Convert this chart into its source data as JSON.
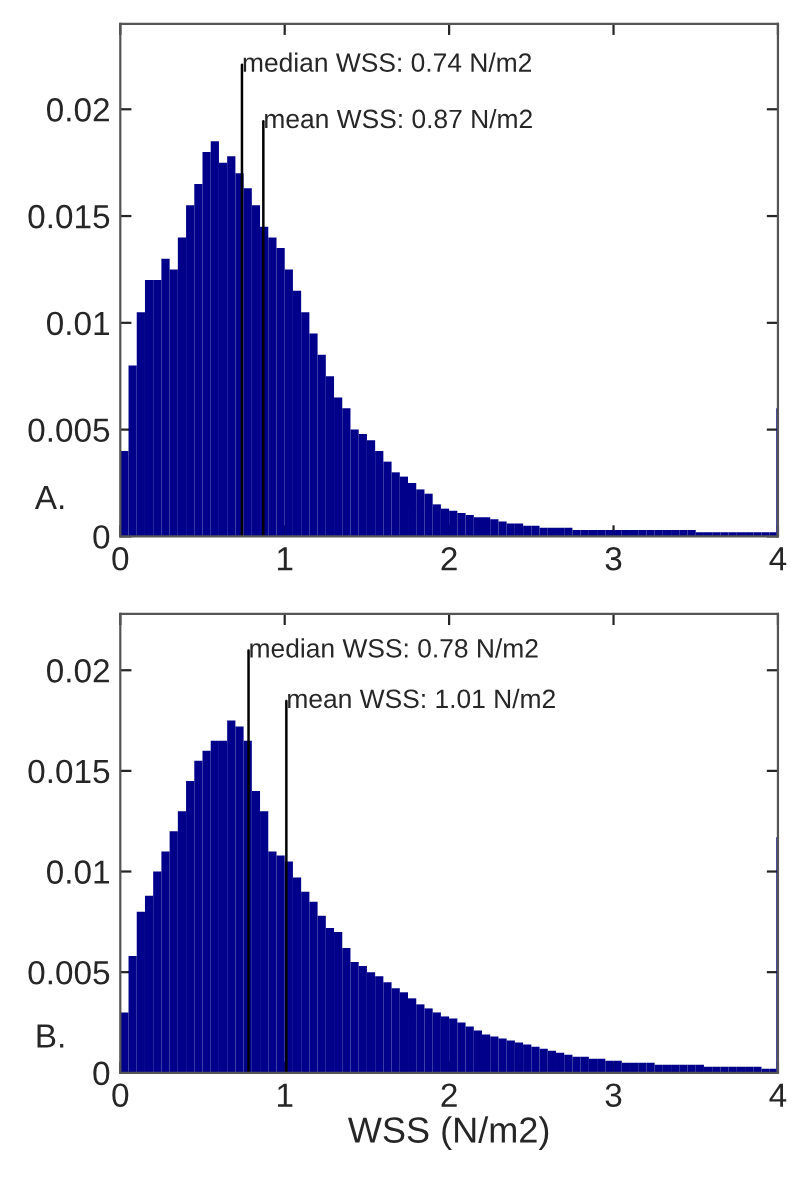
{
  "chart_data": [
    {
      "type": "histogram",
      "bins": [
        0,
        0.05,
        0.1,
        0.15,
        0.2,
        0.25,
        0.3,
        0.35,
        0.4,
        0.45,
        0.5,
        0.55,
        0.6,
        0.65,
        0.7,
        0.75,
        0.8,
        0.85,
        0.9,
        0.95,
        1.0,
        1.05,
        1.1,
        1.15,
        1.2,
        1.25,
        1.3,
        1.35,
        1.4,
        1.45,
        1.5,
        1.55,
        1.6,
        1.65,
        1.7,
        1.75,
        1.8,
        1.85,
        1.9,
        1.95,
        2.0,
        2.05,
        2.1,
        2.15,
        2.2,
        2.25,
        2.3,
        2.35,
        2.4,
        2.45,
        2.5,
        2.55,
        2.6,
        2.65,
        2.7,
        2.75,
        2.8,
        2.85,
        2.9,
        2.95,
        3.0,
        3.05,
        3.1,
        3.15,
        3.2,
        3.25,
        3.3,
        3.35,
        3.4,
        3.45,
        3.5,
        3.55,
        3.6,
        3.65,
        3.7,
        3.75,
        3.8,
        3.85,
        3.9,
        3.95,
        3.99,
        4.0
      ],
      "values": [
        0.004,
        0.008,
        0.0105,
        0.012,
        0.012,
        0.013,
        0.0125,
        0.014,
        0.0155,
        0.0165,
        0.018,
        0.0185,
        0.0175,
        0.0178,
        0.017,
        0.0163,
        0.0155,
        0.0145,
        0.014,
        0.0135,
        0.0125,
        0.0115,
        0.0105,
        0.0095,
        0.0085,
        0.0075,
        0.0065,
        0.006,
        0.005,
        0.0048,
        0.0045,
        0.004,
        0.0035,
        0.003,
        0.0028,
        0.0025,
        0.0022,
        0.002,
        0.0015,
        0.0013,
        0.0012,
        0.0011,
        0.001,
        0.0009,
        0.0009,
        0.0008,
        0.0007,
        0.0006,
        0.0006,
        0.0005,
        0.0005,
        0.0004,
        0.0004,
        0.0004,
        0.0004,
        0.0003,
        0.0003,
        0.0003,
        0.0003,
        0.0003,
        0.0003,
        0.0003,
        0.0003,
        0.0003,
        0.0003,
        0.0003,
        0.0003,
        0.0003,
        0.0003,
        0.0003,
        0.0002,
        0.0002,
        0.0002,
        0.0002,
        0.0002,
        0.0002,
        0.0002,
        0.0002,
        0.0002,
        0.0002,
        0.006
      ],
      "color": "#00008b",
      "xlim": [
        0,
        4
      ],
      "xticks": [
        0,
        1,
        2,
        3,
        4
      ],
      "ylim": [
        0,
        0.024
      ],
      "yticks": [
        0,
        0.005,
        0.01,
        0.015,
        0.02
      ],
      "ref_lines": [
        {
          "axis": "x",
          "value": 0.74,
          "label": "median WSS: 0.74 N/m2"
        },
        {
          "axis": "x",
          "value": 0.87,
          "label": "mean WSS: 0.87 N/m2"
        }
      ],
      "annotations": [
        "A."
      ],
      "grid": false,
      "legend": false
    },
    {
      "type": "histogram",
      "bins": [
        0,
        0.05,
        0.1,
        0.15,
        0.2,
        0.25,
        0.3,
        0.35,
        0.4,
        0.45,
        0.5,
        0.55,
        0.6,
        0.65,
        0.7,
        0.75,
        0.8,
        0.85,
        0.9,
        0.95,
        1.0,
        1.05,
        1.1,
        1.15,
        1.2,
        1.25,
        1.3,
        1.35,
        1.4,
        1.45,
        1.5,
        1.55,
        1.6,
        1.65,
        1.7,
        1.75,
        1.8,
        1.85,
        1.9,
        1.95,
        2.0,
        2.05,
        2.1,
        2.15,
        2.2,
        2.25,
        2.3,
        2.35,
        2.4,
        2.45,
        2.5,
        2.55,
        2.6,
        2.65,
        2.7,
        2.75,
        2.8,
        2.85,
        2.9,
        2.95,
        3.0,
        3.05,
        3.1,
        3.15,
        3.2,
        3.25,
        3.3,
        3.35,
        3.4,
        3.45,
        3.5,
        3.55,
        3.6,
        3.65,
        3.7,
        3.75,
        3.8,
        3.85,
        3.9,
        3.95,
        3.99,
        4.0
      ],
      "values": [
        0.003,
        0.0058,
        0.008,
        0.0088,
        0.01,
        0.011,
        0.012,
        0.013,
        0.0145,
        0.0155,
        0.016,
        0.0165,
        0.0165,
        0.0175,
        0.0172,
        0.0165,
        0.014,
        0.013,
        0.011,
        0.0108,
        0.0105,
        0.0097,
        0.009,
        0.0085,
        0.0078,
        0.0072,
        0.007,
        0.0062,
        0.0055,
        0.0053,
        0.005,
        0.0048,
        0.0045,
        0.0042,
        0.004,
        0.0037,
        0.0034,
        0.0032,
        0.003,
        0.0028,
        0.0027,
        0.0025,
        0.0023,
        0.0021,
        0.0019,
        0.0018,
        0.0017,
        0.0016,
        0.0015,
        0.0014,
        0.0013,
        0.0012,
        0.0011,
        0.001,
        0.0009,
        0.0008,
        0.0008,
        0.0007,
        0.0007,
        0.0006,
        0.0006,
        0.0005,
        0.0005,
        0.0005,
        0.0005,
        0.0004,
        0.0004,
        0.0004,
        0.0004,
        0.0004,
        0.0004,
        0.0003,
        0.0003,
        0.0003,
        0.0003,
        0.0003,
        0.0003,
        0.0003,
        0.0002,
        0.0002,
        0.0117
      ],
      "color": "#00008b",
      "xlim": [
        0,
        4
      ],
      "xticks": [
        0,
        1,
        2,
        3,
        4
      ],
      "ylim": [
        0,
        0.0228
      ],
      "yticks": [
        0,
        0.005,
        0.01,
        0.015,
        0.02
      ],
      "xlabel": "WSS (N/m2)",
      "ref_lines": [
        {
          "axis": "x",
          "value": 0.78,
          "label": "median WSS: 0.78 N/m2"
        },
        {
          "axis": "x",
          "value": 1.01,
          "label": "mean WSS: 1.01 N/m2"
        }
      ],
      "annotations": [
        "B."
      ],
      "grid": false,
      "legend": false
    }
  ]
}
